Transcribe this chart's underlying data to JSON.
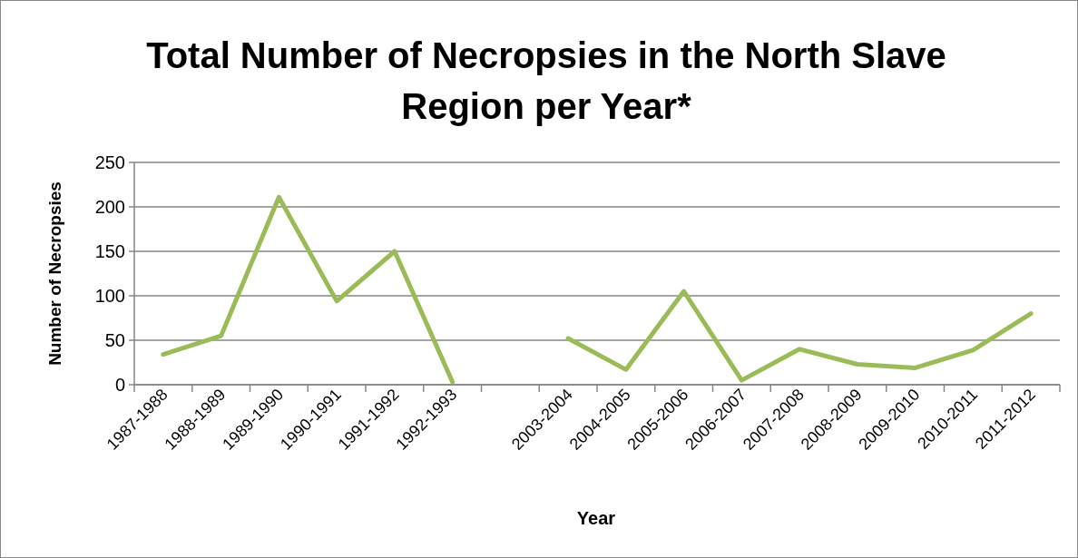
{
  "chart_data": {
    "type": "line",
    "title": "Total Number of Necropsies in the North Slave Region per Year*",
    "xlabel": "Year",
    "ylabel": "Number of Necropsies",
    "categories": [
      "1987-1988",
      "1988-1989",
      "1989-1990",
      "1990-1991",
      "1991-1992",
      "1992-1993",
      null,
      "2003-2004",
      "2004-2005",
      "2005-2006",
      "2006-2007",
      "2007-2008",
      "2008-2009",
      "2009-2010",
      "2010-2011",
      "2011-2012"
    ],
    "series": [
      {
        "color": "#9bbb59",
        "values": [
          34,
          55,
          211,
          94,
          150,
          3,
          null,
          52,
          17,
          105,
          5,
          40,
          23,
          19,
          39,
          80
        ]
      }
    ],
    "ylim": [
      0,
      250
    ],
    "yticks": [
      0,
      50,
      100,
      150,
      200,
      250
    ],
    "grid": "y",
    "marker": "none",
    "line_style": "solid"
  }
}
